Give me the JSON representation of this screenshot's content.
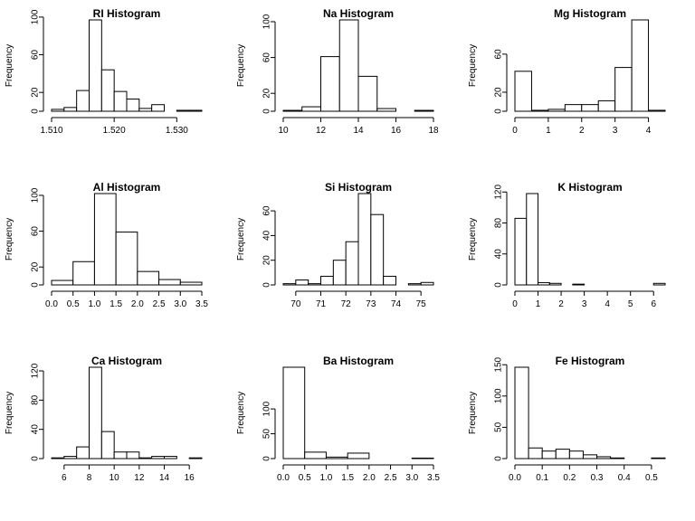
{
  "chart_data": [
    {
      "type": "bar",
      "title": "RI Histogram",
      "xlabel": "",
      "ylabel": "Frequency",
      "xlim": [
        1.51,
        1.534
      ],
      "bin_edges": [
        1.51,
        1.512,
        1.514,
        1.516,
        1.518,
        1.52,
        1.522,
        1.524,
        1.526,
        1.528,
        1.53,
        1.532,
        1.534
      ],
      "values": [
        2,
        4,
        22,
        97,
        44,
        21,
        13,
        3,
        7,
        0,
        1,
        1
      ],
      "x_ticks": [
        1.51,
        1.52,
        1.53
      ],
      "x_tick_labels": [
        "1.510",
        "1.520",
        "1.530"
      ],
      "y_ticks": [
        0,
        20,
        60,
        100
      ],
      "y_tick_labels": [
        "0",
        "20",
        "60",
        "100"
      ],
      "grid": false
    },
    {
      "type": "bar",
      "title": "Na Histogram",
      "xlabel": "",
      "ylabel": "Frequency",
      "xlim": [
        10,
        18
      ],
      "bin_edges": [
        10,
        11,
        12,
        13,
        14,
        15,
        16,
        17,
        18
      ],
      "values": [
        1,
        5,
        61,
        102,
        39,
        3,
        0,
        1
      ],
      "x_ticks": [
        10,
        12,
        14,
        16,
        18
      ],
      "x_tick_labels": [
        "10",
        "12",
        "14",
        "16",
        "18"
      ],
      "y_ticks": [
        0,
        20,
        60,
        100
      ],
      "y_tick_labels": [
        "0",
        "20",
        "60",
        "100"
      ],
      "grid": false
    },
    {
      "type": "bar",
      "title": "Mg Histogram",
      "xlabel": "",
      "ylabel": "Frequency",
      "xlim": [
        0,
        4.5
      ],
      "bin_edges": [
        0,
        0.5,
        1,
        1.5,
        2,
        2.5,
        3,
        3.5,
        4,
        4.5
      ],
      "values": [
        42,
        1,
        2,
        7,
        7,
        11,
        46,
        96,
        1
      ],
      "x_ticks": [
        0,
        1,
        2,
        3,
        4
      ],
      "x_tick_labels": [
        "0",
        "1",
        "2",
        "3",
        "4"
      ],
      "y_ticks": [
        0,
        20,
        60
      ],
      "y_tick_labels": [
        "0",
        "20",
        "60"
      ],
      "grid": false
    },
    {
      "type": "bar",
      "title": "Al Histogram",
      "xlabel": "",
      "ylabel": "Frequency",
      "xlim": [
        0,
        3.5
      ],
      "bin_edges": [
        0,
        0.5,
        1,
        1.5,
        2,
        2.5,
        3,
        3.5
      ],
      "values": [
        5,
        26,
        102,
        59,
        15,
        6,
        3
      ],
      "x_ticks": [
        0,
        0.5,
        1,
        1.5,
        2,
        2.5,
        3,
        3.5
      ],
      "x_tick_labels": [
        "0.0",
        "0.5",
        "1.0",
        "1.5",
        "2.0",
        "2.5",
        "3.0",
        "3.5"
      ],
      "y_ticks": [
        0,
        20,
        60,
        100
      ],
      "y_tick_labels": [
        "0",
        "20",
        "60",
        "100"
      ],
      "grid": false
    },
    {
      "type": "bar",
      "title": "Si Histogram",
      "xlabel": "",
      "ylabel": "Frequency",
      "xlim": [
        69.5,
        75.5
      ],
      "bin_edges": [
        69.5,
        70,
        70.5,
        71,
        71.5,
        72,
        72.5,
        73,
        73.5,
        74,
        74.5,
        75,
        75.5
      ],
      "values": [
        1,
        4,
        1,
        7,
        20,
        35,
        74,
        57,
        7,
        0,
        1,
        2
      ],
      "x_ticks": [
        70,
        71,
        72,
        73,
        74,
        75
      ],
      "x_tick_labels": [
        "70",
        "71",
        "72",
        "73",
        "74",
        "75"
      ],
      "y_ticks": [
        0,
        20,
        40,
        60
      ],
      "y_tick_labels": [
        "0",
        "20",
        "40",
        "60"
      ],
      "grid": false
    },
    {
      "type": "bar",
      "title": "K Histogram",
      "xlabel": "",
      "ylabel": "Frequency",
      "xlim": [
        0,
        6.5
      ],
      "bin_edges": [
        0,
        0.5,
        1,
        1.5,
        2,
        2.5,
        3,
        3.5,
        4,
        4.5,
        5,
        5.5,
        6,
        6.5
      ],
      "values": [
        86,
        118,
        3,
        2,
        0,
        1,
        0,
        0,
        0,
        0,
        0,
        0,
        2
      ],
      "x_ticks": [
        0,
        1,
        2,
        3,
        4,
        5,
        6
      ],
      "x_tick_labels": [
        "0",
        "1",
        "2",
        "3",
        "4",
        "5",
        "6"
      ],
      "y_ticks": [
        0,
        40,
        80,
        120
      ],
      "y_tick_labels": [
        "0",
        "40",
        "80",
        "120"
      ],
      "grid": false
    },
    {
      "type": "bar",
      "title": "Ca Histogram",
      "xlabel": "",
      "ylabel": "Frequency",
      "xlim": [
        5,
        17
      ],
      "bin_edges": [
        5,
        6,
        7,
        8,
        9,
        10,
        11,
        12,
        13,
        14,
        15,
        16,
        17
      ],
      "values": [
        1,
        3,
        16,
        125,
        37,
        9,
        9,
        1,
        3,
        3,
        0,
        1
      ],
      "x_ticks": [
        6,
        8,
        10,
        12,
        14,
        16
      ],
      "x_tick_labels": [
        "6",
        "8",
        "10",
        "12",
        "14",
        "16"
      ],
      "y_ticks": [
        0,
        40,
        80,
        120
      ],
      "y_tick_labels": [
        "0",
        "40",
        "80",
        "120"
      ],
      "grid": false
    },
    {
      "type": "bar",
      "title": "Ba Histogram",
      "xlabel": "",
      "ylabel": "Frequency",
      "xlim": [
        0,
        3.5
      ],
      "bin_edges": [
        0,
        0.5,
        1,
        1.5,
        2,
        2.5,
        3,
        3.5
      ],
      "values": [
        184,
        13,
        3,
        11,
        0,
        0,
        1
      ],
      "x_ticks": [
        0,
        0.5,
        1,
        1.5,
        2,
        2.5,
        3,
        3.5
      ],
      "x_tick_labels": [
        "0.0",
        "0.5",
        "1.0",
        "1.5",
        "2.0",
        "2.5",
        "3.0",
        "3.5"
      ],
      "y_ticks": [
        0,
        50,
        100
      ],
      "y_tick_labels": [
        "0",
        "50",
        "100"
      ],
      "grid": false
    },
    {
      "type": "bar",
      "title": "Fe Histogram",
      "xlabel": "",
      "ylabel": "Frequency",
      "xlim": [
        0,
        0.55
      ],
      "bin_edges": [
        0,
        0.05,
        0.1,
        0.15,
        0.2,
        0.25,
        0.3,
        0.35,
        0.4,
        0.45,
        0.5,
        0.55
      ],
      "values": [
        146,
        17,
        12,
        15,
        12,
        6,
        3,
        1,
        0,
        0,
        1
      ],
      "x_ticks": [
        0,
        0.1,
        0.2,
        0.3,
        0.4,
        0.5
      ],
      "x_tick_labels": [
        "0.0",
        "0.1",
        "0.2",
        "0.3",
        "0.4",
        "0.5"
      ],
      "y_ticks": [
        0,
        50,
        100,
        150
      ],
      "y_tick_labels": [
        "0",
        "50",
        "100",
        "150"
      ],
      "grid": false
    }
  ]
}
